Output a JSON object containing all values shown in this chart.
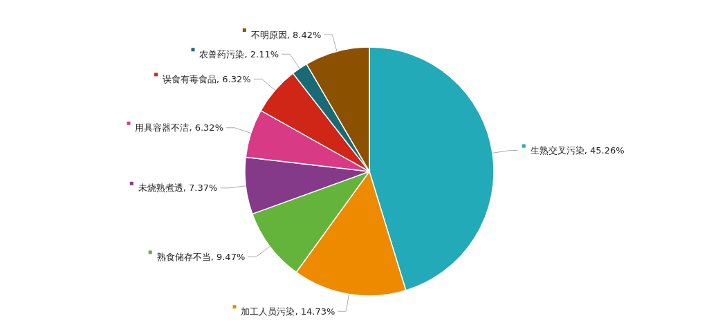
{
  "chart_data": {
    "type": "pie",
    "categories": [
      "生熟交叉污染",
      "加工人员污染",
      "熟食储存不当",
      "未烧熟煮透",
      "用具容器不洁",
      "误食有毒食品",
      "农兽药污染",
      "不明原因"
    ],
    "values": [
      45.26,
      14.73,
      9.47,
      7.37,
      6.32,
      6.32,
      2.11,
      8.42
    ],
    "value_labels": [
      ", 45.26%",
      ", 14.73%",
      ", 9.47%",
      ", 7.37%",
      ", 6.32%",
      ", 6.32%",
      ", 2.11%",
      ", 8.42%"
    ],
    "legend": "left",
    "colors": [
      "#23aab9",
      "#ed8a00",
      "#64b43b",
      "#843a89",
      "#d93a85",
      "#cf2618",
      "#1a6a75",
      "#8b5100"
    ]
  }
}
